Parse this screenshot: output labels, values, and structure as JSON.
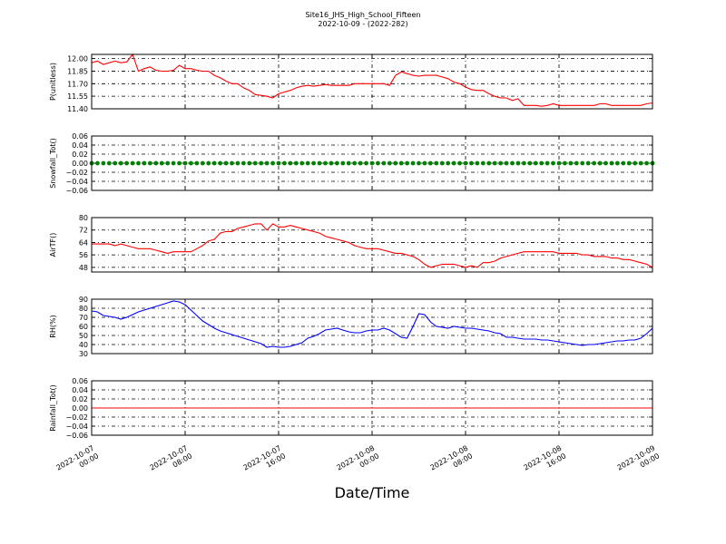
{
  "title": "Site16_JHS_High_School_Fifteen",
  "subtitle": "2022-10-09 - (2022-282)",
  "xlabel": "Date/Time",
  "x_ticks": [
    [
      "2022-10-07",
      "00:00"
    ],
    [
      "2022-10-07",
      "08:00"
    ],
    [
      "2022-10-07",
      "16:00"
    ],
    [
      "2022-10-08",
      "00:00"
    ],
    [
      "2022-10-08",
      "08:00"
    ],
    [
      "2022-10-08",
      "16:00"
    ],
    [
      "2022-10-09",
      "00:00"
    ]
  ],
  "chart_data": [
    {
      "type": "line",
      "ylabel": "P(unitless)",
      "color": "#ff0000",
      "ylim": [
        11.4,
        12.05
      ],
      "yticks": [
        "11.40",
        "11.55",
        "11.70",
        "11.85",
        "12.00"
      ],
      "ytick_values": [
        11.4,
        11.55,
        11.7,
        11.85,
        12.0
      ],
      "x_hours": [
        0,
        0.5,
        1,
        1.5,
        2,
        2.5,
        3,
        3.5,
        4,
        4.5,
        5,
        5.5,
        6,
        6.5,
        7,
        7.5,
        8,
        8.5,
        9,
        9.5,
        10,
        10.5,
        11,
        11.5,
        12,
        12.5,
        13,
        13.5,
        14,
        14.5,
        15,
        15.5,
        16,
        16.5,
        17,
        17.5,
        18,
        18.5,
        19,
        19.5,
        20,
        20.5,
        21,
        21.5,
        22,
        22.5,
        23,
        23.5,
        24,
        24.5,
        25,
        25.5,
        26,
        26.5,
        27,
        27.5,
        28,
        28.5,
        29,
        29.5,
        30,
        30.5,
        31,
        31.5,
        32,
        32.5,
        33,
        33.5,
        34,
        34.5,
        35,
        35.5,
        36,
        36.5,
        37,
        37.5,
        38,
        38.5,
        39,
        39.5,
        40,
        40.5,
        41,
        41.5,
        42,
        42.5,
        43,
        43.5,
        44,
        44.5,
        45,
        45.5,
        46,
        46.5,
        47,
        47.5,
        48
      ],
      "values": [
        11.95,
        11.97,
        11.93,
        11.95,
        11.97,
        11.95,
        11.96,
        12.05,
        11.85,
        11.88,
        11.9,
        11.86,
        11.85,
        11.85,
        11.86,
        11.92,
        11.88,
        11.88,
        11.86,
        11.85,
        11.85,
        11.8,
        11.77,
        11.73,
        11.7,
        11.7,
        11.65,
        11.62,
        11.57,
        11.56,
        11.55,
        11.53,
        11.58,
        11.6,
        11.62,
        11.65,
        11.67,
        11.68,
        11.67,
        11.68,
        11.69,
        11.68,
        11.68,
        11.68,
        11.68,
        11.7,
        11.7,
        11.7,
        11.7,
        11.7,
        11.7,
        11.68,
        11.8,
        11.84,
        11.82,
        11.8,
        11.79,
        11.8,
        11.8,
        11.8,
        11.78,
        11.76,
        11.72,
        11.7,
        11.66,
        11.63,
        11.62,
        11.62,
        11.58,
        11.55,
        11.53,
        11.53,
        11.5,
        11.52,
        11.44,
        11.44,
        11.44,
        11.43,
        11.44,
        11.46,
        11.44,
        11.44,
        11.44,
        11.44,
        11.44,
        11.44,
        11.44,
        11.46,
        11.46,
        11.44,
        11.44,
        11.44,
        11.44,
        11.44,
        11.44,
        11.46,
        11.47
      ]
    },
    {
      "type": "scatter",
      "ylabel": "Snowfall_Tot()",
      "color": "#008000",
      "ylim": [
        -0.06,
        0.06
      ],
      "yticks": [
        "−0.06",
        "−0.04",
        "−0.02",
        "0.00",
        "0.02",
        "0.04",
        "0.06"
      ],
      "ytick_values": [
        -0.06,
        -0.04,
        -0.02,
        0.0,
        0.02,
        0.04,
        0.06
      ],
      "x_hours": [
        0,
        0.5,
        1,
        1.5,
        2,
        2.5,
        3,
        3.5,
        4,
        4.5,
        5,
        5.5,
        6,
        6.5,
        7,
        7.5,
        8,
        8.5,
        9,
        9.5,
        10,
        10.5,
        11,
        11.5,
        12,
        12.5,
        13,
        13.5,
        14,
        14.5,
        15,
        15.5,
        16,
        16.5,
        17,
        17.5,
        18,
        18.5,
        19,
        19.5,
        20,
        20.5,
        21,
        21.5,
        22,
        22.5,
        23,
        23.5,
        24,
        24.5,
        25,
        25.5,
        26,
        26.5,
        27,
        27.5,
        28,
        28.5,
        29,
        29.5,
        30,
        30.5,
        31,
        31.5,
        32,
        32.5,
        33,
        33.5,
        34,
        34.5,
        35,
        35.5,
        36,
        36.5,
        37,
        37.5,
        38,
        38.5,
        39,
        39.5,
        40,
        40.5,
        41,
        41.5,
        42,
        42.5,
        43,
        43.5,
        44,
        44.5,
        45,
        45.5,
        46,
        46.5,
        47,
        47.5,
        48
      ],
      "values": [
        0,
        0,
        0,
        0,
        0,
        0,
        0,
        0,
        0,
        0,
        0,
        0,
        0,
        0,
        0,
        0,
        0,
        0,
        0,
        0,
        0,
        0,
        0,
        0,
        0,
        0,
        0,
        0,
        0,
        0,
        0,
        0,
        0,
        0,
        0,
        0,
        0,
        0,
        0,
        0,
        0,
        0,
        0,
        0,
        0,
        0,
        0,
        0,
        0,
        0,
        0,
        0,
        0,
        0,
        0,
        0,
        0,
        0,
        0,
        0,
        0,
        0,
        0,
        0,
        0,
        0,
        0,
        0,
        0,
        0,
        0,
        0,
        0,
        0,
        0,
        0,
        0,
        0,
        0,
        0,
        0,
        0,
        0,
        0,
        0,
        0,
        0,
        0,
        0,
        0,
        0,
        0,
        0,
        0,
        0,
        0,
        0
      ]
    },
    {
      "type": "line",
      "ylabel": "AirTF()",
      "color": "#ff0000",
      "ylim": [
        45,
        80
      ],
      "yticks": [
        "48",
        "56",
        "64",
        "72",
        "80"
      ],
      "ytick_values": [
        48,
        56,
        64,
        72,
        80
      ],
      "x_hours": [
        0,
        0.5,
        1,
        1.5,
        2,
        2.5,
        3,
        3.5,
        4,
        4.5,
        5,
        5.5,
        6,
        6.5,
        7,
        7.5,
        8,
        8.5,
        9,
        9.5,
        10,
        10.5,
        11,
        11.5,
        12,
        12.5,
        13,
        13.5,
        14,
        14.5,
        15,
        15.5,
        16,
        16.5,
        17,
        17.5,
        18,
        18.5,
        19,
        19.5,
        20,
        20.5,
        21,
        21.5,
        22,
        22.5,
        23,
        23.5,
        24,
        24.5,
        25,
        25.5,
        26,
        26.5,
        27,
        27.5,
        28,
        28.5,
        29,
        29.5,
        30,
        30.5,
        31,
        31.5,
        32,
        32.5,
        33,
        33.5,
        34,
        34.5,
        35,
        35.5,
        36,
        36.5,
        37,
        37.5,
        38,
        38.5,
        39,
        39.5,
        40,
        40.5,
        41,
        41.5,
        42,
        42.5,
        43,
        43.5,
        44,
        44.5,
        45,
        45.5,
        46,
        46.5,
        47,
        47.5,
        48
      ],
      "values": [
        63,
        63,
        63,
        63,
        62,
        63,
        62,
        61,
        60,
        60,
        60,
        59,
        58,
        57,
        58,
        58,
        58,
        58,
        60,
        62,
        65,
        66,
        70,
        71,
        71,
        73,
        74,
        75,
        76,
        76,
        72,
        76,
        74,
        74,
        75,
        74,
        73,
        72,
        71,
        70,
        68,
        67,
        66,
        65,
        64,
        62,
        61,
        60,
        60,
        60,
        59,
        58,
        57,
        57,
        56,
        55,
        53,
        50,
        48,
        49,
        50,
        50,
        50,
        49,
        48,
        49,
        48,
        51,
        51,
        52,
        54,
        55,
        56,
        57,
        58,
        58,
        58,
        58,
        58,
        58,
        57,
        57,
        57,
        57,
        56,
        56,
        55,
        55,
        55,
        54,
        54,
        53,
        53,
        52,
        51,
        50,
        48
      ]
    },
    {
      "type": "line",
      "ylabel": "RH(%)",
      "color": "#0000ff",
      "ylim": [
        30,
        90
      ],
      "yticks": [
        "30",
        "40",
        "50",
        "60",
        "70",
        "80",
        "90"
      ],
      "ytick_values": [
        30,
        40,
        50,
        60,
        70,
        80,
        90
      ],
      "x_hours": [
        0,
        0.5,
        1,
        1.5,
        2,
        2.5,
        3,
        3.5,
        4,
        4.5,
        5,
        5.5,
        6,
        6.5,
        7,
        7.5,
        8,
        8.5,
        9,
        9.5,
        10,
        10.5,
        11,
        11.5,
        12,
        12.5,
        13,
        13.5,
        14,
        14.5,
        15,
        15.5,
        16,
        16.5,
        17,
        17.5,
        18,
        18.5,
        19,
        19.5,
        20,
        20.5,
        21,
        21.5,
        22,
        22.5,
        23,
        23.5,
        24,
        24.5,
        25,
        25.5,
        26,
        26.5,
        27,
        27.5,
        28,
        28.5,
        29,
        29.5,
        30,
        30.5,
        31,
        31.5,
        32,
        32.5,
        33,
        33.5,
        34,
        34.5,
        35,
        35.5,
        36,
        36.5,
        37,
        37.5,
        38,
        38.5,
        39,
        39.5,
        40,
        40.5,
        41,
        41.5,
        42,
        42.5,
        43,
        43.5,
        44,
        44.5,
        45,
        45.5,
        46,
        46.5,
        47,
        47.5,
        48
      ],
      "values": [
        77,
        76,
        72,
        71,
        70,
        68,
        70,
        73,
        76,
        78,
        80,
        82,
        84,
        86,
        88,
        87,
        84,
        78,
        72,
        66,
        62,
        58,
        55,
        53,
        51,
        49,
        47,
        45,
        43,
        41,
        37,
        38,
        37,
        37,
        38,
        40,
        42,
        47,
        49,
        52,
        56,
        57,
        58,
        56,
        54,
        53,
        53,
        55,
        56,
        56,
        58,
        56,
        52,
        48,
        47,
        60,
        74,
        73,
        65,
        60,
        59,
        58,
        60,
        59,
        58,
        58,
        57,
        56,
        55,
        53,
        52,
        48,
        48,
        47,
        46,
        46,
        46,
        45,
        45,
        44,
        43,
        42,
        41,
        40,
        39,
        40,
        40,
        41,
        42,
        43,
        44,
        44,
        45,
        45,
        47,
        52,
        58
      ]
    },
    {
      "type": "line",
      "ylabel": "Rainfall_Tot()",
      "color": "#ff0000",
      "ylim": [
        -0.06,
        0.06
      ],
      "yticks": [
        "−0.06",
        "−0.04",
        "−0.02",
        "0.00",
        "0.02",
        "0.04",
        "0.06"
      ],
      "ytick_values": [
        -0.06,
        -0.04,
        -0.02,
        0.0,
        0.02,
        0.04,
        0.06
      ],
      "x_hours": [
        0,
        0.5,
        1,
        1.5,
        2,
        2.5,
        3,
        3.5,
        4,
        4.5,
        5,
        5.5,
        6,
        6.5,
        7,
        7.5,
        8,
        8.5,
        9,
        9.5,
        10,
        10.5,
        11,
        11.5,
        12,
        12.5,
        13,
        13.5,
        14,
        14.5,
        15,
        15.5,
        16,
        16.5,
        17,
        17.5,
        18,
        18.5,
        19,
        19.5,
        20,
        20.5,
        21,
        21.5,
        22,
        22.5,
        23,
        23.5,
        24,
        24.5,
        25,
        25.5,
        26,
        26.5,
        27,
        27.5,
        28,
        28.5,
        29,
        29.5,
        30,
        30.5,
        31,
        31.5,
        32,
        32.5,
        33,
        33.5,
        34,
        34.5,
        35,
        35.5,
        36,
        36.5,
        37,
        37.5,
        38,
        38.5,
        39,
        39.5,
        40,
        40.5,
        41,
        41.5,
        42,
        42.5,
        43,
        43.5,
        44,
        44.5,
        45,
        45.5,
        46,
        46.5,
        47,
        47.5,
        48
      ],
      "values": [
        0,
        0,
        0,
        0,
        0,
        0,
        0,
        0,
        0,
        0,
        0,
        0,
        0,
        0,
        0,
        0,
        0,
        0,
        0,
        0,
        0,
        0,
        0,
        0,
        0,
        0,
        0,
        0,
        0,
        0,
        0,
        0,
        0,
        0,
        0,
        0,
        0,
        0,
        0,
        0,
        0,
        0,
        0,
        0,
        0,
        0,
        0,
        0,
        0,
        0,
        0,
        0,
        0,
        0,
        0,
        0,
        0,
        0,
        0,
        0,
        0,
        0,
        0,
        0,
        0,
        0,
        0,
        0,
        0,
        0,
        0,
        0,
        0,
        0,
        0,
        0,
        0,
        0,
        0,
        0,
        0,
        0,
        0,
        0,
        0,
        0,
        0,
        0,
        0,
        0,
        0,
        0,
        0,
        0,
        0,
        0,
        0
      ]
    }
  ]
}
